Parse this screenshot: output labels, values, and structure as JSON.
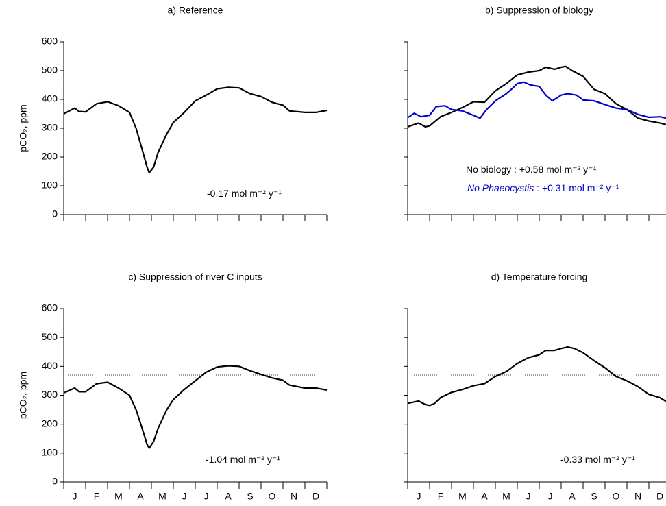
{
  "chart_data": [
    {
      "type": "line",
      "title": "a) Reference",
      "ylabel": "pCO₂, ppm",
      "show_ytick_labels": true,
      "xlim": [
        0,
        12
      ],
      "xticks": [
        0,
        1,
        2,
        3,
        4,
        5,
        6,
        7,
        8,
        9,
        10,
        11,
        12
      ],
      "ylim": [
        0,
        600
      ],
      "yticks": [
        0,
        100,
        200,
        300,
        400,
        500,
        600
      ],
      "hline": 370,
      "series": [
        {
          "color": "#000000",
          "x": [
            0,
            0.5,
            0.7,
            1,
            1.5,
            2,
            2.5,
            3,
            3.3,
            3.6,
            3.8,
            3.9,
            4.1,
            4.3,
            4.7,
            5,
            5.5,
            6,
            6.5,
            7,
            7.5,
            8,
            8.5,
            9,
            9.5,
            10,
            10.3,
            11,
            11.5,
            12
          ],
          "values": [
            350,
            370,
            358,
            357,
            385,
            392,
            378,
            355,
            300,
            220,
            165,
            145,
            165,
            215,
            280,
            320,
            355,
            395,
            415,
            437,
            442,
            440,
            420,
            410,
            390,
            380,
            360,
            355,
            355,
            362
          ]
        }
      ],
      "annotations": [
        [
          {
            "text": "-0.17 mol m⁻² y⁻¹",
            "color": "#000000",
            "italic": false
          }
        ]
      ]
    },
    {
      "type": "line",
      "title": "b) Suppression of biology",
      "show_ytick_labels": false,
      "xlim": [
        0,
        12
      ],
      "xticks": [
        0,
        1,
        2,
        3,
        4,
        5,
        6,
        7,
        8,
        9,
        10,
        11,
        12
      ],
      "ylim": [
        0,
        600
      ],
      "yticks": [
        0,
        100,
        200,
        300,
        400,
        500,
        600
      ],
      "hline": 370,
      "series": [
        {
          "color": "#000000",
          "x": [
            0,
            0.5,
            0.8,
            1,
            1.5,
            2,
            2.5,
            3,
            3.5,
            4,
            4.5,
            5,
            5.5,
            6,
            6.3,
            6.7,
            7,
            7.2,
            7.5,
            8,
            8.5,
            9,
            9.5,
            10,
            10.5,
            11,
            11.5,
            12
          ],
          "values": [
            305,
            318,
            305,
            308,
            340,
            355,
            372,
            392,
            390,
            430,
            455,
            485,
            495,
            500,
            512,
            505,
            512,
            515,
            500,
            480,
            435,
            420,
            385,
            365,
            335,
            325,
            318,
            308
          ]
        },
        {
          "color": "#0000cc",
          "x": [
            0,
            0.3,
            0.6,
            1,
            1.3,
            1.7,
            2,
            2.5,
            3,
            3.3,
            3.6,
            4,
            4.5,
            4.8,
            5,
            5.3,
            5.6,
            6,
            6.3,
            6.6,
            7,
            7.3,
            7.7,
            8,
            8.5,
            9,
            9.5,
            10,
            10.5,
            11,
            11.5,
            11.8
          ],
          "values": [
            337,
            352,
            340,
            345,
            375,
            378,
            365,
            360,
            345,
            335,
            365,
            395,
            420,
            440,
            455,
            460,
            450,
            445,
            415,
            395,
            415,
            420,
            415,
            398,
            395,
            382,
            370,
            365,
            348,
            338,
            340,
            335
          ]
        }
      ],
      "annotations": [
        [
          {
            "text": "No biology : +0.58 mol m⁻² y⁻¹",
            "color": "#000000",
            "italic": false
          }
        ],
        [
          {
            "text": "No Phaeocystis",
            "color": "#0000cc",
            "italic": true
          },
          {
            "text": " : +0.31 mol m⁻² y⁻¹",
            "color": "#0000cc",
            "italic": false
          }
        ]
      ]
    },
    {
      "type": "line",
      "title": "c) Suppression of river C inputs",
      "ylabel": "pCO₂, ppm",
      "show_ytick_labels": true,
      "xlim": [
        0,
        12
      ],
      "xticks": [
        0,
        1,
        2,
        3,
        4,
        5,
        6,
        7,
        8,
        9,
        10,
        11,
        12
      ],
      "categories": [
        "J",
        "F",
        "M",
        "A",
        "M",
        "J",
        "J",
        "A",
        "S",
        "O",
        "N",
        "D"
      ],
      "ylim": [
        0,
        600
      ],
      "yticks": [
        0,
        100,
        200,
        300,
        400,
        500,
        600
      ],
      "hline": 370,
      "series": [
        {
          "color": "#000000",
          "x": [
            0,
            0.5,
            0.7,
            1,
            1.5,
            2,
            2.5,
            3,
            3.3,
            3.6,
            3.8,
            3.9,
            4.1,
            4.3,
            4.7,
            5,
            5.5,
            6,
            6.5,
            7,
            7.5,
            8,
            8.5,
            9,
            9.5,
            10,
            10.3,
            11,
            11.5,
            12
          ],
          "values": [
            308,
            325,
            312,
            312,
            340,
            345,
            325,
            300,
            250,
            180,
            130,
            117,
            140,
            185,
            250,
            285,
            320,
            350,
            380,
            398,
            402,
            400,
            385,
            372,
            360,
            352,
            335,
            325,
            325,
            318
          ]
        }
      ],
      "annotations": [
        [
          {
            "text": "-1.04 mol m⁻² y⁻¹",
            "color": "#000000",
            "italic": false
          }
        ]
      ]
    },
    {
      "type": "line",
      "title": "d) Temperature forcing",
      "show_ytick_labels": false,
      "xlim": [
        0,
        12
      ],
      "xticks": [
        0,
        1,
        2,
        3,
        4,
        5,
        6,
        7,
        8,
        9,
        10,
        11,
        12
      ],
      "categories": [
        "J",
        "F",
        "M",
        "A",
        "M",
        "J",
        "J",
        "A",
        "S",
        "O",
        "N",
        "D"
      ],
      "ylim": [
        0,
        600
      ],
      "yticks": [
        0,
        100,
        200,
        300,
        400,
        500,
        600
      ],
      "hline": 370,
      "series": [
        {
          "color": "#000000",
          "x": [
            0,
            0.5,
            0.8,
            1,
            1.2,
            1.5,
            2,
            2.5,
            3,
            3.5,
            4,
            4.5,
            5,
            5.5,
            6,
            6.3,
            6.7,
            7,
            7.3,
            7.6,
            8,
            8.5,
            9,
            9.5,
            10,
            10.5,
            11,
            11.5,
            11.8
          ],
          "values": [
            272,
            280,
            268,
            265,
            270,
            292,
            310,
            320,
            333,
            340,
            365,
            382,
            410,
            430,
            440,
            455,
            455,
            462,
            467,
            462,
            447,
            420,
            395,
            365,
            350,
            330,
            303,
            292,
            278
          ]
        }
      ],
      "annotations": [
        [
          {
            "text": "-0.33 mol m⁻² y⁻¹",
            "color": "#000000",
            "italic": false
          }
        ]
      ]
    }
  ]
}
